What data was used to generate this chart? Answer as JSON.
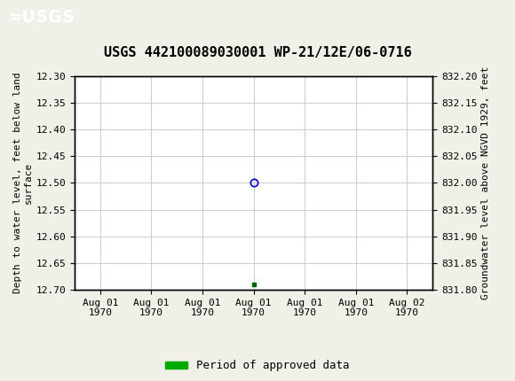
{
  "title": "USGS 442100089030001 WP-21/12E/06-0716",
  "ylabel_left": "Depth to water level, feet below land\nsurface",
  "ylabel_right": "Groundwater level above NGVD 1929, feet",
  "ylim_left": [
    12.7,
    12.3
  ],
  "yticks_left": [
    12.3,
    12.35,
    12.4,
    12.45,
    12.5,
    12.55,
    12.6,
    12.65,
    12.7
  ],
  "yticks_right": [
    832.2,
    832.15,
    832.1,
    832.05,
    832.0,
    831.95,
    831.9,
    831.85,
    831.8
  ],
  "open_circle_value": 12.5,
  "filled_square_value": 12.69,
  "open_circle_color": "#0000cc",
  "filled_square_color": "#006600",
  "grid_color": "#cccccc",
  "bg_color": "#f0f0e8",
  "plot_bg_color": "#ffffff",
  "header_bg_color": "#1a6b3c",
  "header_text_color": "#ffffff",
  "title_color": "#000000",
  "axis_label_color": "#000000",
  "tick_label_color": "#000000",
  "legend_label": "Period of approved data",
  "legend_color": "#00aa00",
  "font_family": "monospace",
  "title_fontsize": 11,
  "tick_fontsize": 8,
  "axis_label_fontsize": 8,
  "legend_fontsize": 9,
  "xtick_labels": [
    "Aug 01\n1970",
    "Aug 01\n1970",
    "Aug 01\n1970",
    "Aug 01\n1970",
    "Aug 01\n1970",
    "Aug 01\n1970",
    "Aug 02\n1970"
  ],
  "data_point_x": 3,
  "xlim": [
    -0.5,
    6.5
  ]
}
